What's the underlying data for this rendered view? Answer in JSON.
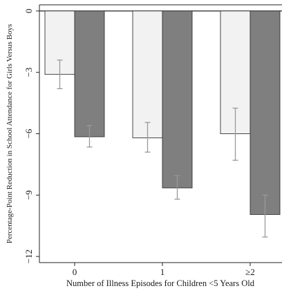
{
  "chart_data": {
    "type": "bar",
    "title": "",
    "xlabel": "Number of Illness Episodes for Children <5 Years Old",
    "ylabel": "Percentage-Point Reduction in School Attendance for Girls Versus Boys",
    "categories": [
      "0",
      "1",
      "≥2"
    ],
    "ylim": [
      -12.3,
      0.3
    ],
    "yticks": [
      0,
      -3,
      -6,
      -9,
      -12
    ],
    "ytick_labels": [
      "0",
      "−3",
      "−6",
      "−9",
      "−12"
    ],
    "grid": false,
    "legend": "none",
    "series": [
      {
        "color": "#f2f2f2",
        "values": [
          -3.1,
          -6.2,
          -6.0
        ],
        "ci_low": [
          -3.8,
          -6.9,
          -7.3
        ],
        "ci_high": [
          -2.4,
          -5.45,
          -4.75
        ]
      },
      {
        "color": "#7f7f7f",
        "values": [
          -6.15,
          -8.65,
          -9.95
        ],
        "ci_low": [
          -6.65,
          -9.2,
          -11.05
        ],
        "ci_high": [
          -5.6,
          -8.05,
          -9.0
        ]
      }
    ],
    "errorbar_color": "#999999",
    "bar_edge_color": "#333333"
  }
}
